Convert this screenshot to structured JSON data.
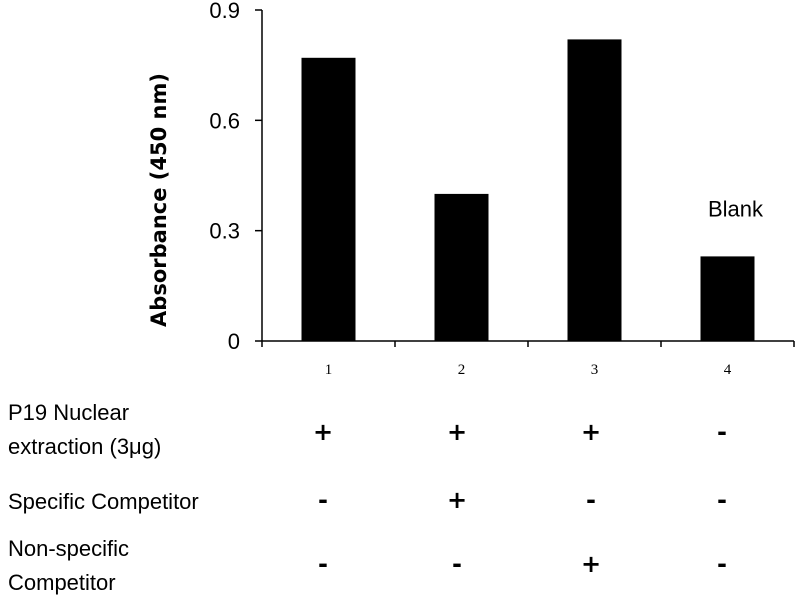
{
  "chart_data": {
    "type": "bar",
    "title": "",
    "xlabel": "",
    "ylabel": "Absorbance (450 nm)",
    "categories": [
      "1",
      "2",
      "3",
      "4"
    ],
    "values": [
      0.77,
      0.4,
      0.82,
      0.23
    ],
    "ylim": [
      0,
      0.9
    ],
    "yticks": [
      0,
      0.3,
      0.6,
      0.9
    ],
    "ytick_labels": [
      "0",
      "0.3",
      "0.6",
      "0.9"
    ],
    "grid": false,
    "bar_color": "#000000",
    "annotations": [
      {
        "category": "4",
        "text": "Blank"
      }
    ]
  },
  "conditions": [
    {
      "line1": "P19 Nuclear",
      "line2": "extraction (3μg)",
      "signs": [
        "+",
        "+",
        "+",
        "-"
      ]
    },
    {
      "line1": "Specific Competitor",
      "signs": [
        "-",
        "+",
        "-",
        "-"
      ]
    },
    {
      "line1": "Non-specific",
      "line2": "Competitor",
      "signs": [
        "-",
        "-",
        "+",
        "-"
      ]
    }
  ]
}
